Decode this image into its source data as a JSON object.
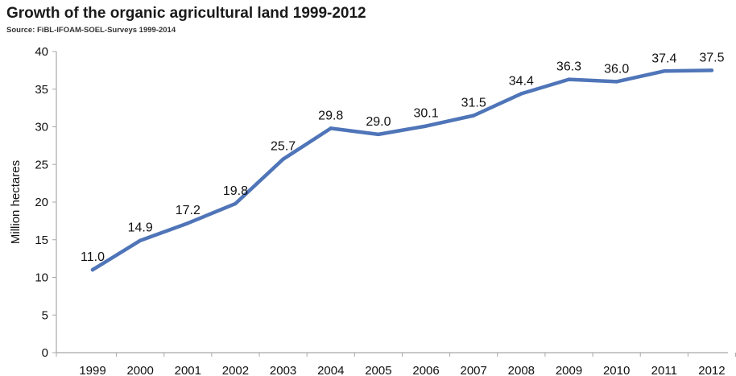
{
  "chart_data": {
    "type": "line",
    "title": "Growth of the organic agricultural land 1999-2012",
    "subtitle": "Source: FiBL-IFOAM-SOEL-Surveys 1999-2014",
    "ylabel": "Million hectares",
    "xlabel": "",
    "categories": [
      "1999",
      "2000",
      "2001",
      "2002",
      "2003",
      "2004",
      "2005",
      "2006",
      "2007",
      "2008",
      "2009",
      "2010",
      "2011",
      "2012"
    ],
    "series": [
      {
        "values": [
          11.0,
          14.9,
          17.2,
          19.8,
          25.7,
          29.8,
          29.0,
          30.1,
          31.5,
          34.4,
          36.3,
          36.0,
          37.4,
          37.5
        ],
        "labels": [
          "11.0",
          "14.9",
          "17.2",
          "19.8",
          "25.7",
          "29.8",
          "29.0",
          "30.1",
          "31.5",
          "34.4",
          "36.3",
          "36.0",
          "37.4",
          "37.5"
        ]
      }
    ],
    "yticks": [
      "0",
      "5",
      "10",
      "15",
      "20",
      "25",
      "30",
      "35",
      "40"
    ],
    "ylim": [
      0,
      40
    ],
    "grid": false,
    "line_color": "#4f75b8",
    "axis_color": "#a8a8a8"
  }
}
